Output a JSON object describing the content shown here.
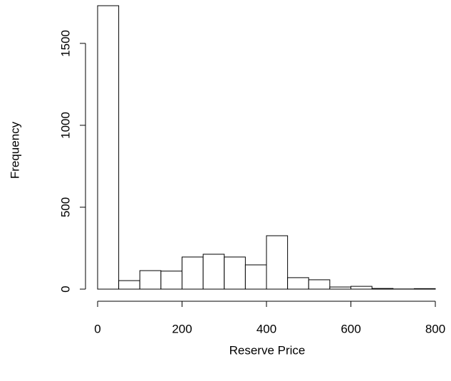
{
  "chart_data": {
    "type": "histogram",
    "x_label": "Reserve Price",
    "y_label": "Frequency",
    "bins": [
      0,
      50,
      100,
      150,
      200,
      250,
      300,
      350,
      400,
      450,
      500,
      550,
      600,
      650,
      700,
      750,
      800
    ],
    "values": [
      1730,
      52,
      113,
      110,
      196,
      213,
      196,
      148,
      326,
      70,
      57,
      13,
      17,
      4,
      1,
      3
    ],
    "color": "#ffffff",
    "xlim": [
      0,
      800
    ],
    "ylim": [
      0,
      1730
    ],
    "xticks": [
      0,
      200,
      400,
      600,
      800
    ],
    "yticks": [
      0,
      500,
      1000,
      1500
    ]
  }
}
